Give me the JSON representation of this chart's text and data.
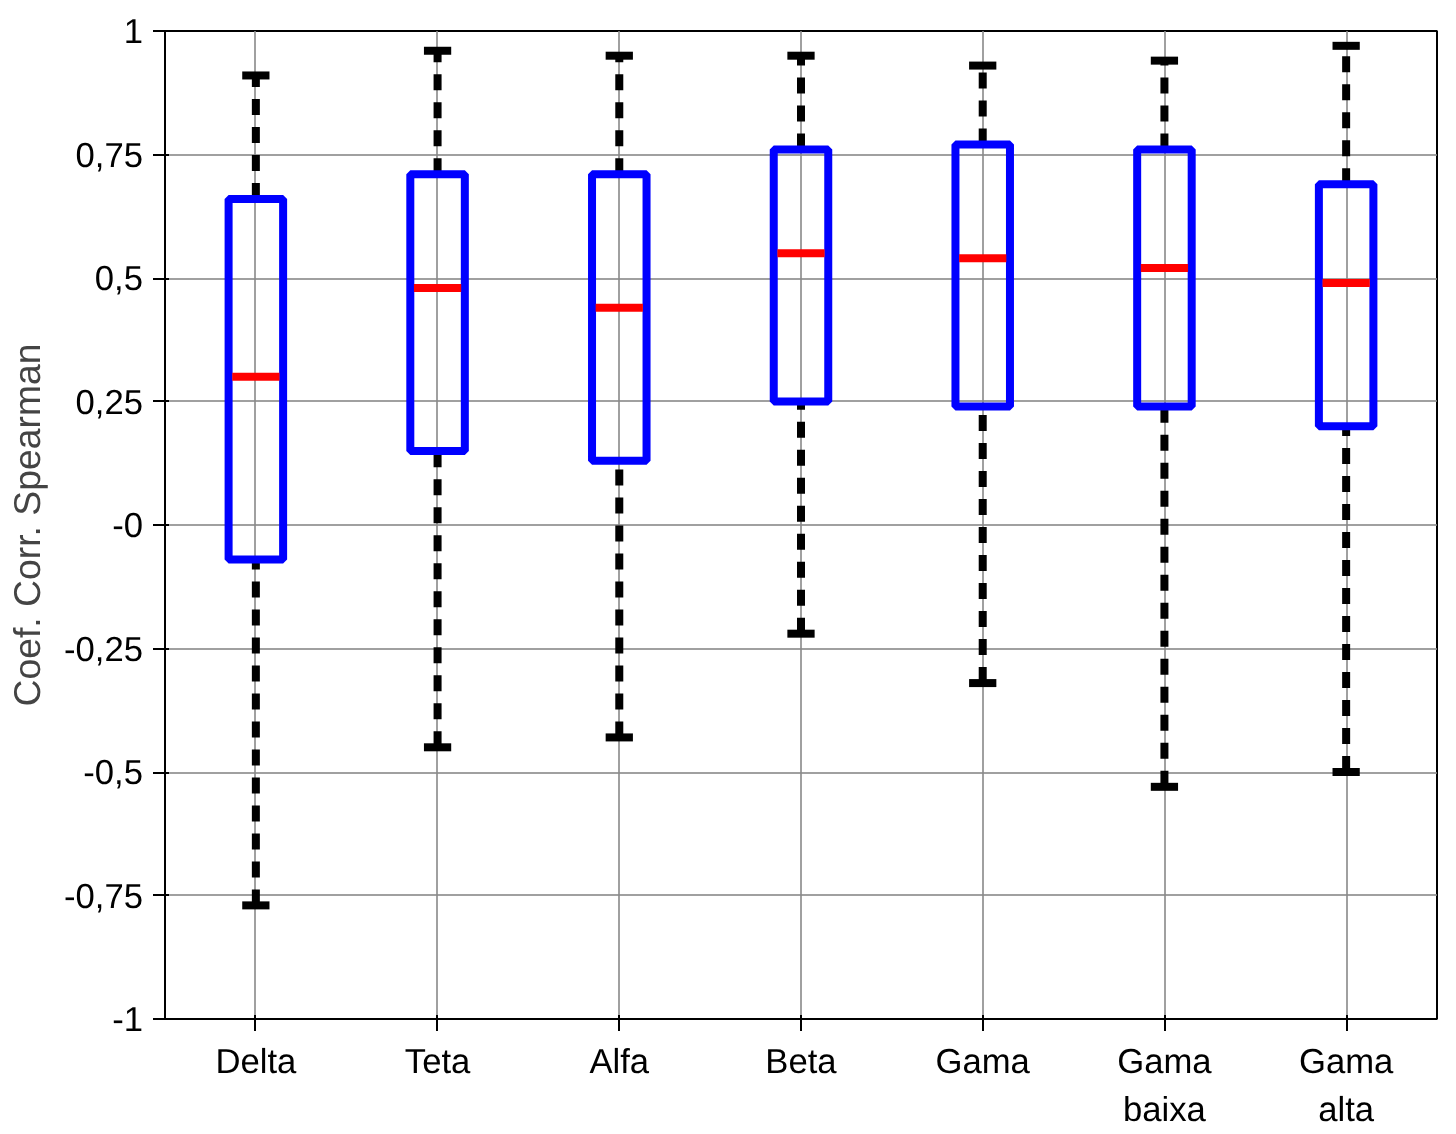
{
  "chart_data": {
    "type": "box",
    "ylabel": "Coef. Corr. Spearman",
    "categories": [
      "Delta",
      "Teta",
      "Alfa",
      "Beta",
      "Gama",
      "Gama\nbaixa",
      "Gama\nalta"
    ],
    "ylim": [
      -1,
      1
    ],
    "yticks": [
      {
        "value": -1,
        "label": "-1"
      },
      {
        "value": -0.75,
        "label": "-0,75"
      },
      {
        "value": -0.5,
        "label": "-0,5"
      },
      {
        "value": -0.25,
        "label": "-0,25"
      },
      {
        "value": 0,
        "label": "-0"
      },
      {
        "value": 0.25,
        "label": "0,25"
      },
      {
        "value": 0.5,
        "label": "0,5"
      },
      {
        "value": 0.75,
        "label": "0,75"
      },
      {
        "value": 1,
        "label": "1"
      }
    ],
    "grid": true,
    "line_style": "dashed",
    "series": [
      {
        "color": "#0000ff",
        "boxes": [
          {
            "low": -0.77,
            "q1": -0.07,
            "median": 0.3,
            "q3": 0.66,
            "high": 0.91
          },
          {
            "low": -0.45,
            "q1": 0.15,
            "median": 0.48,
            "q3": 0.71,
            "high": 0.96
          },
          {
            "low": -0.43,
            "q1": 0.13,
            "median": 0.44,
            "q3": 0.71,
            "high": 0.95
          },
          {
            "low": -0.22,
            "q1": 0.25,
            "median": 0.55,
            "q3": 0.76,
            "high": 0.95
          },
          {
            "low": -0.32,
            "q1": 0.24,
            "median": 0.54,
            "q3": 0.77,
            "high": 0.93
          },
          {
            "low": -0.53,
            "q1": 0.24,
            "median": 0.52,
            "q3": 0.76,
            "high": 0.94
          },
          {
            "low": -0.5,
            "q1": 0.2,
            "median": 0.49,
            "q3": 0.69,
            "high": 0.97
          }
        ]
      }
    ]
  }
}
